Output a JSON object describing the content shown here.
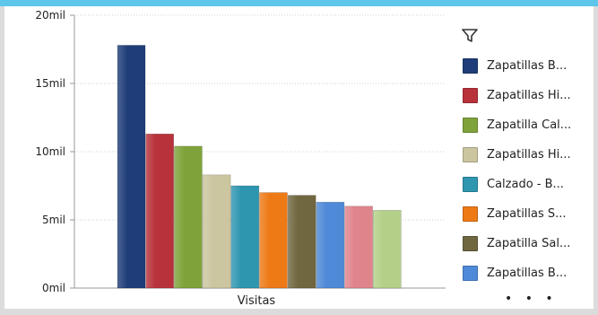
{
  "chart_data": {
    "type": "bar",
    "categories": [
      "Visitas"
    ],
    "xlabel": "",
    "ylabel": "",
    "ylim": [
      0,
      20000
    ],
    "yticks": [
      {
        "value": 0,
        "label": "0mil"
      },
      {
        "value": 5000,
        "label": "5mil"
      },
      {
        "value": 10000,
        "label": "10mil"
      },
      {
        "value": 15000,
        "label": "15mil"
      },
      {
        "value": 20000,
        "label": "20mil"
      }
    ],
    "grid": true,
    "legend_position": "right",
    "series": [
      {
        "name": "Zapatillas B...",
        "values": [
          17800
        ],
        "color": "#1f3d78"
      },
      {
        "name": "Zapatillas Hi...",
        "values": [
          11300
        ],
        "color": "#b8323c"
      },
      {
        "name": "Zapatilla Cal...",
        "values": [
          10400
        ],
        "color": "#7fa33a"
      },
      {
        "name": "Zapatillas Hi...",
        "values": [
          8300
        ],
        "color": "#ccc6a0"
      },
      {
        "name": "Calzado - B...",
        "values": [
          7500
        ],
        "color": "#2f96b0"
      },
      {
        "name": "Zapatillas S...",
        "values": [
          7000
        ],
        "color": "#ee7a16"
      },
      {
        "name": "Zapatilla Sal...",
        "values": [
          6800
        ],
        "color": "#706640"
      },
      {
        "name": "Zapatillas B...",
        "values": [
          6300
        ],
        "color": "#4f8ad8"
      },
      {
        "name": "",
        "values": [
          6000
        ],
        "color": "#e0848c"
      },
      {
        "name": "",
        "values": [
          5700
        ],
        "color": "#b4d088"
      }
    ]
  },
  "legend": {
    "more": "• • •"
  },
  "icons": {
    "filter": "filter-icon"
  }
}
